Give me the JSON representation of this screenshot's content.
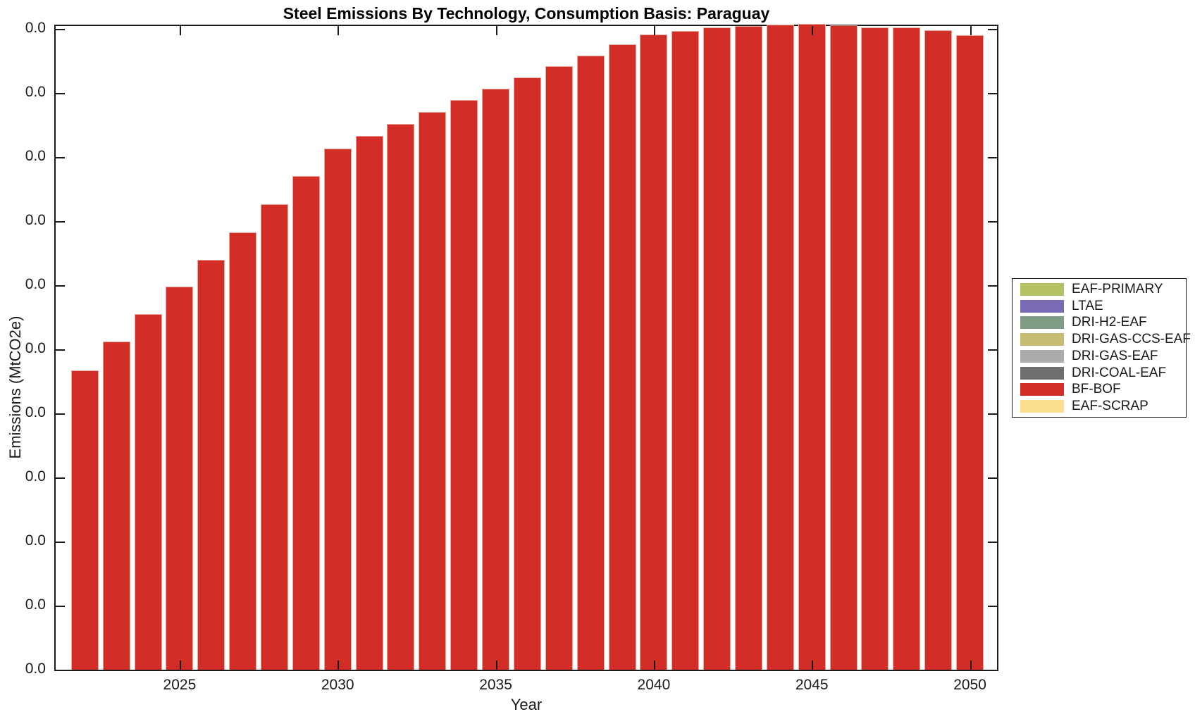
{
  "title": "Steel Emissions By Technology, Consumption Basis: Paraguay",
  "axes": {
    "x_label": "Year",
    "y_label": "Emissions (MtCO2e)",
    "x_tick_labels": [
      "2025",
      "2030",
      "2035",
      "2040",
      "2045",
      "2050"
    ],
    "y_tick_labels": [
      "0.0",
      "0.0",
      "0.0",
      "0.0",
      "0.0",
      "0.0",
      "0.0",
      "0.0",
      "0.0",
      "0.0",
      "0.0"
    ]
  },
  "legend": {
    "entries": [
      {
        "label": "EAF-PRIMARY",
        "color": "#b5c063"
      },
      {
        "label": "LTAE",
        "color": "#7b6bb5"
      },
      {
        "label": "DRI-H2-EAF",
        "color": "#7f9d85"
      },
      {
        "label": "DRI-GAS-CCS-EAF",
        "color": "#c6bd72"
      },
      {
        "label": "DRI-GAS-EAF",
        "color": "#ababab"
      },
      {
        "label": "DRI-COAL-EAF",
        "color": "#6f6f6f"
      },
      {
        "label": "BF-BOF",
        "color": "#d22d26"
      },
      {
        "label": "EAF-SCRAP",
        "color": "#fbdf8e"
      }
    ]
  },
  "chart_data": {
    "type": "bar",
    "stacked": true,
    "title": "Steel Emissions By Technology, Consumption Basis: Paraguay",
    "xlabel": "Year",
    "ylabel": "Emissions (MtCO2e)",
    "x": [
      2022,
      2023,
      2024,
      2025,
      2026,
      2027,
      2028,
      2029,
      2030,
      2031,
      2032,
      2033,
      2034,
      2035,
      2036,
      2037,
      2038,
      2039,
      2040,
      2041,
      2042,
      2043,
      2044,
      2045,
      2046,
      2047,
      2048,
      2049,
      2050
    ],
    "series": [
      {
        "name": "BF-BOF",
        "color": "#d22d26",
        "values_relative": [
          0.463,
          0.508,
          0.55,
          0.593,
          0.634,
          0.677,
          0.72,
          0.764,
          0.806,
          0.826,
          0.844,
          0.863,
          0.881,
          0.899,
          0.916,
          0.934,
          0.95,
          0.967,
          0.983,
          0.988,
          0.993,
          0.996,
          0.998,
          0.999,
          0.997,
          0.994,
          0.993,
          0.989,
          0.982
        ]
      }
    ],
    "x_ticks": [
      2025,
      2030,
      2035,
      2040,
      2045,
      2050
    ],
    "y_ticks_count": 11,
    "y_tick_label_text": "0.0",
    "grid": false,
    "legend_position": "outside-right",
    "note": "Only the BF-BOF series is visible; all y-axis tick labels display 0.0 (values below display precision), so bar heights are recorded as fractions of the full y-axis height (peak at 2045)."
  }
}
